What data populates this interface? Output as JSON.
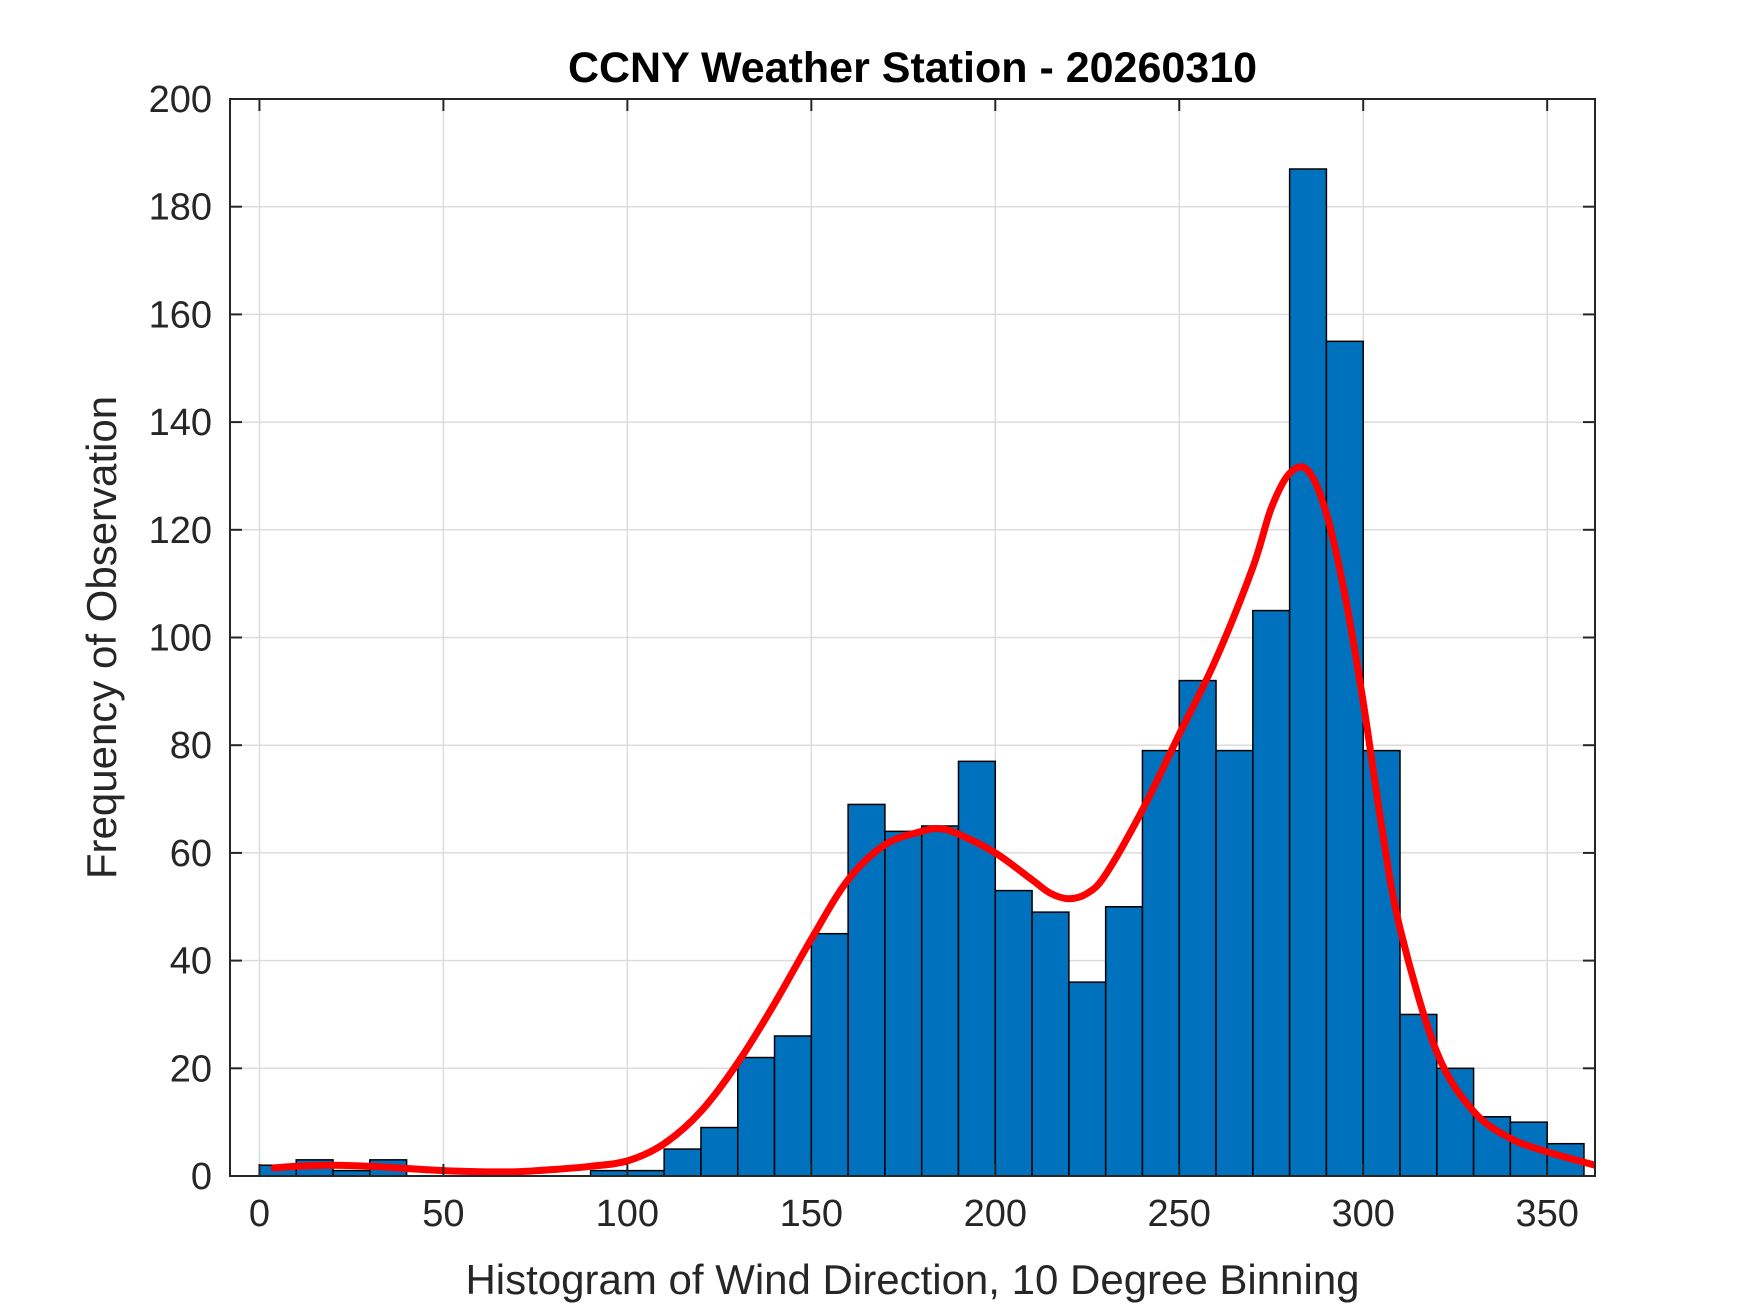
{
  "chart_data": {
    "type": "bar",
    "title": "CCNY Weather Station - 20260310",
    "xlabel": "Histogram of Wind Direction, 10 Degree Binning",
    "ylabel": "Frequency of Observation",
    "xlim": [
      -8,
      363
    ],
    "ylim": [
      0,
      200
    ],
    "xticks": [
      0,
      50,
      100,
      150,
      200,
      250,
      300,
      350
    ],
    "yticks": [
      0,
      20,
      40,
      60,
      80,
      100,
      120,
      140,
      160,
      180,
      200
    ],
    "grid": true,
    "bin_width": 10,
    "bin_edges": [
      0,
      10,
      20,
      30,
      40,
      50,
      60,
      70,
      80,
      90,
      100,
      110,
      120,
      130,
      140,
      150,
      160,
      170,
      180,
      190,
      200,
      210,
      220,
      230,
      240,
      250,
      260,
      270,
      280,
      290,
      300,
      310,
      320,
      330,
      340,
      350,
      360
    ],
    "values": [
      2,
      3,
      1,
      3,
      0,
      0,
      0,
      0,
      0,
      1,
      1,
      5,
      9,
      22,
      26,
      45,
      69,
      64,
      65,
      77,
      53,
      49,
      36,
      50,
      79,
      92,
      79,
      105,
      187,
      155,
      79,
      30,
      20,
      11,
      10,
      6
    ],
    "bar_color": "#0072BD",
    "bar_edge_color": "#000000",
    "fit_curve": {
      "color": "#FF0000",
      "x": [
        4,
        10,
        20,
        30,
        40,
        50,
        60,
        70,
        80,
        90,
        100,
        110,
        120,
        130,
        140,
        150,
        160,
        170,
        180,
        185,
        190,
        200,
        210,
        215,
        220,
        225,
        230,
        240,
        250,
        260,
        270,
        275,
        280,
        285,
        290,
        295,
        300,
        305,
        310,
        320,
        330,
        340,
        350,
        363
      ],
      "y": [
        1.5,
        1.8,
        2,
        1.8,
        1.4,
        1,
        0.8,
        0.8,
        1.2,
        1.8,
        2.8,
        6,
        12,
        21,
        32,
        44,
        55,
        61.5,
        64,
        64.5,
        63.5,
        60,
        55,
        52.5,
        51.5,
        52.5,
        56,
        68,
        82,
        96,
        113,
        124,
        130.5,
        131,
        123,
        108,
        88,
        65,
        46,
        23,
        12,
        7,
        4.5,
        2
      ]
    }
  }
}
